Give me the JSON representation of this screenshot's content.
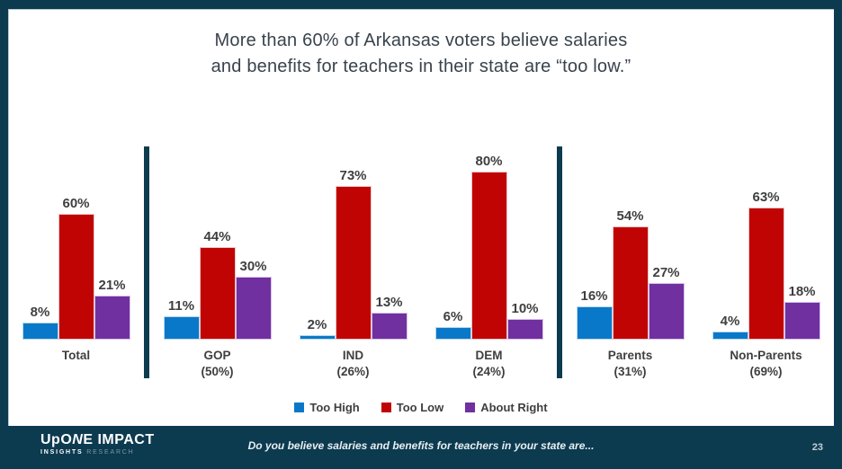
{
  "slide": {
    "title_line1": "More than 60% of Arkansas voters believe salaries",
    "title_line2": "and benefits for teachers in their state are “too low.”",
    "footer_question": "Do you believe salaries and benefits for teachers in your state are...",
    "page_number": "23",
    "logo": {
      "parts": [
        "UpO",
        "N",
        "E IMPACT"
      ],
      "sub1": "INSIGHTS",
      "sub2": "RESEARCH"
    }
  },
  "colors": {
    "frame_dark_teal": "#0C3B50",
    "title_text": "#39434C",
    "label_text": "#3F3F3F",
    "canvas_white": "#FFFFFF"
  },
  "chart_data": {
    "type": "bar",
    "title": "More than 60% of Arkansas voters believe salaries and benefits for teachers in their state are “too low.”",
    "categories": [
      "Total",
      "GOP",
      "IND",
      "DEM",
      "Parents",
      "Non-Parents"
    ],
    "category_sublabels": [
      "",
      "(50%)",
      "(26%)",
      "(24%)",
      "(31%)",
      "(69%)"
    ],
    "series": [
      {
        "name": "Too High",
        "color": "#0A78C8",
        "edge": "#B9D8EF",
        "values": [
          8,
          11,
          2,
          6,
          16,
          4
        ]
      },
      {
        "name": "Too Low",
        "color": "#C00404",
        "edge": "#EFC5C5",
        "values": [
          60,
          44,
          73,
          80,
          54,
          63
        ]
      },
      {
        "name": "About Right",
        "color": "#7030A0",
        "edge": "#D8C3EC",
        "values": [
          21,
          30,
          13,
          10,
          27,
          18
        ]
      }
    ],
    "sections": [
      [
        0
      ],
      [
        1,
        2,
        3
      ],
      [
        4,
        5
      ]
    ],
    "value_suffix": "%",
    "ylim": [
      0,
      100
    ],
    "grid": false,
    "legend_position": "bottom",
    "annotations": "data labels above each bar; sections separated by vertical dark teal divider bars"
  }
}
